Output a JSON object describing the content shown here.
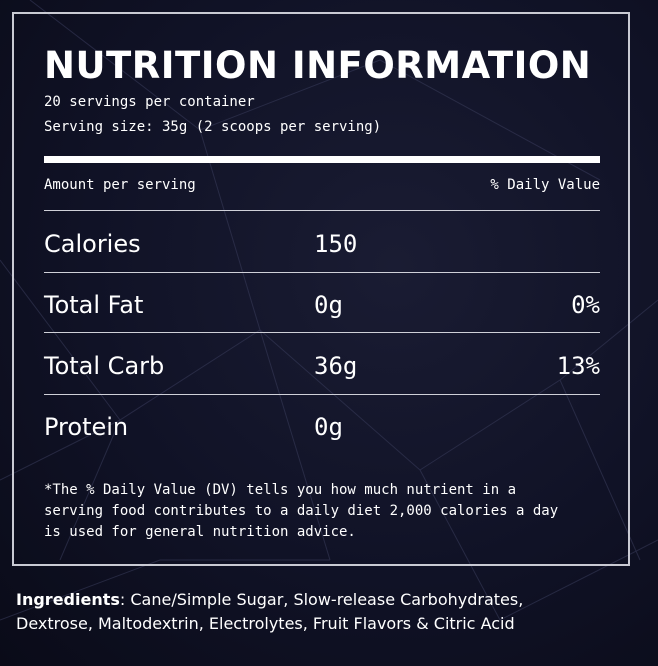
{
  "colors": {
    "background": "#101226",
    "text": "#ffffff",
    "border": "#c9cad3"
  },
  "panel": {
    "title": "NUTRITION INFORMATION",
    "servings_per_container": "20 servings per container",
    "serving_size": "Serving size: 35g (2 scoops per serving)",
    "header": {
      "amount_label": "Amount per serving",
      "daily_value_label": "% Daily Value"
    },
    "rows": [
      {
        "name": "Calories",
        "amount": "150",
        "dv": ""
      },
      {
        "name": "Total Fat",
        "amount": "0g",
        "dv": "0%"
      },
      {
        "name": "Total Carb",
        "amount": "36g",
        "dv": "13%"
      },
      {
        "name": "Protein",
        "amount": "0g",
        "dv": ""
      }
    ],
    "footnote_lines": [
      "*The  % Daily Value (DV) tells you how much nutrient in a",
      "serving food contributes to a daily diet 2,000 calories a day",
      "is used for general nutrition advice."
    ]
  },
  "ingredients": {
    "label": "Ingredients",
    "line1": ": Cane/Simple Sugar, Slow-release Carbohydrates,",
    "line2": "Dextrose, Maltodextrin, Electrolytes, Fruit Flavors & Citric Acid"
  }
}
